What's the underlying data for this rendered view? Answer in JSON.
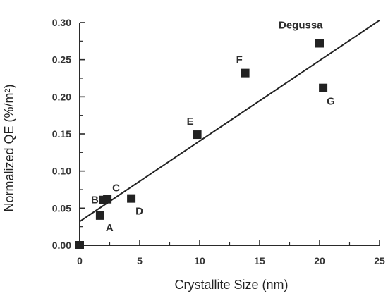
{
  "chart_data": {
    "type": "scatter",
    "title": "",
    "xlabel": "Crystallite Size (nm)",
    "ylabel": "Normalized QE (%/m²)",
    "xlim": [
      0,
      25
    ],
    "ylim": [
      0,
      0.3
    ],
    "x_ticks": [
      "0",
      "5",
      "10",
      "15",
      "20",
      "25"
    ],
    "y_ticks": [
      "0.00",
      "0.05",
      "0.10",
      "0.15",
      "0.20",
      "0.25",
      "0.30"
    ],
    "grid": false,
    "legend": "none",
    "colors": {
      "axis": "#2a2a2a",
      "point": "#222222",
      "line": "#222222",
      "text": "#2d2d2d"
    },
    "series": [
      {
        "points": [
          {
            "label": "",
            "x": 0.0,
            "y": 0.0
          },
          {
            "label": "A",
            "x": 1.7,
            "y": 0.04
          },
          {
            "label": "B",
            "x": 2.0,
            "y": 0.061
          },
          {
            "label": "C",
            "x": 2.3,
            "y": 0.062
          },
          {
            "label": "D",
            "x": 4.3,
            "y": 0.063
          },
          {
            "label": "E",
            "x": 9.8,
            "y": 0.149
          },
          {
            "label": "F",
            "x": 13.8,
            "y": 0.232
          },
          {
            "label": "Degussa",
            "x": 20.0,
            "y": 0.272
          },
          {
            "label": "G",
            "x": 20.3,
            "y": 0.212
          }
        ]
      }
    ],
    "fit_line": {
      "x": [
        0,
        25
      ],
      "y": [
        0.032,
        0.303
      ]
    }
  }
}
